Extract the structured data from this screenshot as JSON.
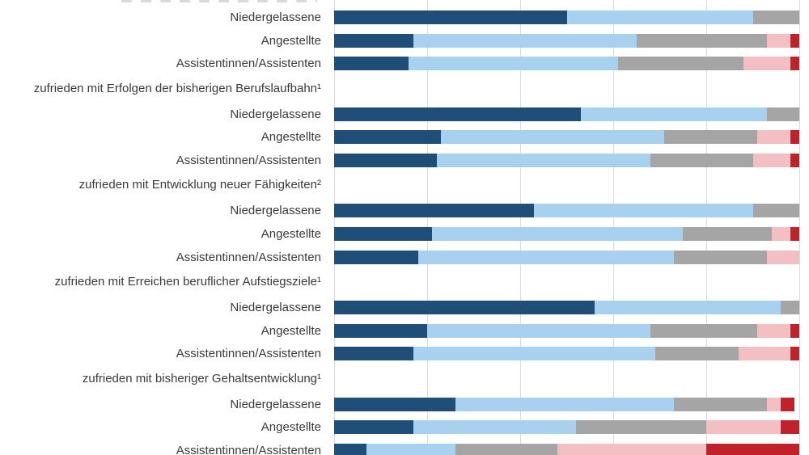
{
  "meta": {
    "language": "de",
    "top_heading_clipped": true,
    "background": "#ffffff",
    "gridline_color": "#d9d9d9",
    "text_color": "#3a3a3a"
  },
  "chart_data": {
    "type": "bar",
    "orientation": "horizontal",
    "stacked": true,
    "unit": "percent",
    "xlim": [
      0,
      100
    ],
    "grid": true,
    "gridlines_percent": [
      0,
      20,
      40,
      60,
      80,
      100
    ],
    "legend_visible": false,
    "axis_tick_labels_visible": false,
    "segments": [
      {
        "id": "dark-blue",
        "hex": "#1f4e79"
      },
      {
        "id": "light-blue",
        "hex": "#a7d1ee"
      },
      {
        "id": "gray",
        "hex": "#a5a5a5"
      },
      {
        "id": "light-red",
        "hex": "#f3bfc2"
      },
      {
        "id": "dark-red",
        "hex": "#c1222a"
      }
    ],
    "groups": [
      {
        "heading": "",
        "heading_clipped": true,
        "rows": [
          {
            "label": "Niedergelassene",
            "values": [
              50,
              40,
              10,
              0,
              0
            ]
          },
          {
            "label": "Angestellte",
            "values": [
              17,
              48,
              28,
              5,
              2
            ]
          },
          {
            "label": "Assistentinnen/Assistenten",
            "values": [
              16,
              45,
              27,
              10,
              2
            ]
          }
        ]
      },
      {
        "heading": "zufrieden mit Erfolgen der bisherigen Berufslaufbahn¹",
        "rows": [
          {
            "label": "Niedergelassene",
            "values": [
              53,
              40,
              7,
              0,
              0
            ]
          },
          {
            "label": "Angestellte",
            "values": [
              23,
              48,
              20,
              7,
              2
            ]
          },
          {
            "label": "Assistentinnen/Assistenten",
            "values": [
              22,
              46,
              22,
              8,
              2
            ]
          }
        ]
      },
      {
        "heading": "zufrieden mit Entwicklung neuer Fähigkeiten²",
        "rows": [
          {
            "label": "Niedergelassene",
            "values": [
              43,
              47,
              10,
              0,
              0
            ]
          },
          {
            "label": "Angestellte",
            "values": [
              21,
              54,
              19,
              4,
              2
            ]
          },
          {
            "label": "Assistentinnen/Assistenten",
            "values": [
              18,
              55,
              20,
              7,
              0
            ]
          }
        ]
      },
      {
        "heading": "zufrieden mit Erreichen beruflicher Aufstiegsziele¹",
        "rows": [
          {
            "label": "Niedergelassene",
            "values": [
              56,
              40,
              4,
              0,
              0
            ]
          },
          {
            "label": "Angestellte",
            "values": [
              20,
              48,
              23,
              7,
              2
            ]
          },
          {
            "label": "Assistentinnen/Assistenten",
            "values": [
              17,
              52,
              18,
              11,
              2
            ]
          }
        ]
      },
      {
        "heading": "zufrieden mit bisheriger Gehaltsentwicklung¹",
        "rows": [
          {
            "label": "Niedergelassene",
            "values": [
              26,
              47,
              20,
              3,
              3
            ]
          },
          {
            "label": "Angestellte",
            "values": [
              17,
              35,
              28,
              16,
              4
            ]
          },
          {
            "label": "Assistentinnen/Assistenten",
            "values": [
              7,
              19,
              22,
              32,
              20
            ]
          }
        ]
      }
    ]
  }
}
